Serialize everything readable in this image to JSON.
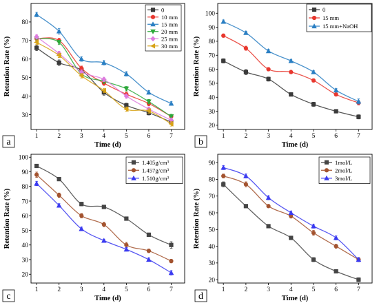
{
  "chart_data": [
    {
      "panel_label": "a",
      "type": "line",
      "xlabel": "Time (d)",
      "ylabel": "Retention Rate (%)",
      "x": [
        1,
        2,
        3,
        4,
        5,
        6,
        7
      ],
      "xticks": [
        1,
        2,
        3,
        4,
        5,
        6,
        7
      ],
      "xlim": [
        0.75,
        7.6
      ],
      "yticks": [
        30,
        40,
        50,
        60,
        70,
        80
      ],
      "ylim": [
        22,
        90
      ],
      "grid": false,
      "legend": "top-right",
      "series": [
        {
          "name": "0",
          "color": "#3a3a3a",
          "marker": "square",
          "values": [
            66,
            58,
            54,
            42,
            35,
            31,
            26
          ],
          "err": [
            1.5,
            1.5,
            1.2,
            1.5,
            1.2,
            1.2,
            1.2
          ]
        },
        {
          "name": "10 mm",
          "color": "#e8372e",
          "marker": "circle",
          "values": [
            71,
            70,
            55,
            47,
            41,
            36,
            29
          ],
          "err": [
            1.2,
            1.2,
            1.2,
            1.2,
            1.2,
            1.2,
            1.2
          ]
        },
        {
          "name": "15 mm",
          "color": "#2a7fc3",
          "marker": "triangle-up",
          "values": [
            84,
            75,
            60,
            58,
            52,
            42,
            36
          ],
          "err": [
            1.2,
            1.5,
            1.2,
            1.2,
            1.2,
            1.0,
            1.0
          ]
        },
        {
          "name": "20 mm",
          "color": "#2da83a",
          "marker": "triangle-down",
          "values": [
            71,
            69,
            52,
            48,
            44,
            37,
            29
          ],
          "err": [
            1.2,
            1.2,
            1.2,
            1.2,
            1.2,
            1.2,
            1.2
          ]
        },
        {
          "name": "25 mm",
          "color": "#dd7bde",
          "marker": "diamond",
          "values": [
            72,
            63,
            53,
            49,
            40,
            33,
            27
          ],
          "err": [
            1.2,
            1.2,
            1.2,
            1.2,
            1.2,
            1.2,
            1.2
          ]
        },
        {
          "name": "30 mm",
          "color": "#d7a216",
          "marker": "triangle-left",
          "values": [
            69,
            62,
            51,
            43,
            33,
            32,
            25
          ],
          "err": [
            1.2,
            1.2,
            1.2,
            1.2,
            1.2,
            1.2,
            1.2
          ]
        }
      ]
    },
    {
      "panel_label": "b",
      "type": "line",
      "xlabel": "Time (d)",
      "ylabel": "Retention Rate (%)",
      "x": [
        1,
        2,
        3,
        4,
        5,
        6,
        7
      ],
      "xticks": [
        1,
        2,
        3,
        4,
        5,
        6,
        7
      ],
      "xlim": [
        0.75,
        7.6
      ],
      "yticks": [
        20,
        30,
        40,
        50,
        60,
        70,
        80,
        90,
        100
      ],
      "ylim": [
        17,
        107
      ],
      "grid": false,
      "legend": "top-right",
      "series": [
        {
          "name": "0",
          "color": "#3a3a3a",
          "marker": "square",
          "values": [
            66,
            58,
            53,
            42,
            35,
            30,
            26
          ],
          "err": [
            1.5,
            1.8,
            1.5,
            1.2,
            1.5,
            1.2,
            1.5
          ]
        },
        {
          "name": "15 mm",
          "color": "#e8372e",
          "marker": "circle",
          "values": [
            84,
            75,
            60,
            58,
            52,
            42,
            36
          ],
          "err": [
            1.2,
            1.5,
            1.2,
            1.2,
            1.2,
            1.2,
            1.5
          ]
        },
        {
          "name": "15 mm+NaOH",
          "color": "#2a7fc3",
          "marker": "triangle-up",
          "values": [
            94,
            86,
            73,
            66,
            58,
            45,
            37
          ],
          "err": [
            1.2,
            1.0,
            1.2,
            1.0,
            1.0,
            1.2,
            1.8
          ]
        }
      ]
    },
    {
      "panel_label": "c",
      "type": "line",
      "xlabel": "Time (d)",
      "ylabel": "Retention Rate (%)",
      "x": [
        1,
        2,
        3,
        4,
        5,
        6,
        7
      ],
      "xticks": [
        1,
        2,
        3,
        4,
        5,
        6,
        7
      ],
      "xlim": [
        0.75,
        7.6
      ],
      "yticks": [
        20,
        30,
        40,
        50,
        60,
        70,
        80,
        90,
        100
      ],
      "ylim": [
        14,
        102
      ],
      "grid": false,
      "legend": "top-right",
      "series": [
        {
          "name": "1.405g/cm³",
          "color": "#454545",
          "marker": "square",
          "values": [
            94,
            85,
            68,
            66,
            58,
            47,
            40
          ],
          "err": [
            1.2,
            1.0,
            1.2,
            1.0,
            1.2,
            1.2,
            2.2
          ]
        },
        {
          "name": "1.457g/cm³",
          "color": "#a3532f",
          "marker": "circle",
          "values": [
            88,
            74,
            60,
            54,
            40,
            36,
            29
          ],
          "err": [
            1.8,
            1.5,
            1.5,
            1.5,
            1.8,
            1.2,
            1.2
          ]
        },
        {
          "name": "1.510g/cm³",
          "color": "#3a3af0",
          "marker": "triangle-up",
          "values": [
            82,
            67,
            51,
            43,
            37,
            30,
            21
          ],
          "err": [
            1.5,
            1.2,
            1.2,
            1.0,
            1.2,
            1.2,
            1.5
          ]
        }
      ]
    },
    {
      "panel_label": "d",
      "type": "line",
      "xlabel": "Time (d)",
      "ylabel": "Retention Rate (%)",
      "x": [
        1,
        2,
        3,
        4,
        5,
        6,
        7
      ],
      "xticks": [
        1,
        2,
        3,
        4,
        5,
        6,
        7
      ],
      "xlim": [
        0.75,
        7.6
      ],
      "yticks": [
        20,
        30,
        40,
        50,
        60,
        70,
        80,
        90
      ],
      "ylim": [
        18,
        95
      ],
      "grid": false,
      "legend": "top-right",
      "series": [
        {
          "name": "1mol/L",
          "color": "#454545",
          "marker": "square",
          "values": [
            77,
            64,
            52,
            45,
            32,
            25,
            20
          ],
          "err": [
            1.5,
            1.0,
            1.0,
            1.0,
            1.2,
            1.0,
            1.2
          ]
        },
        {
          "name": "2mol/L",
          "color": "#a3532f",
          "marker": "circle",
          "values": [
            82,
            77,
            64,
            58,
            48,
            40,
            32
          ],
          "err": [
            1.2,
            1.5,
            1.0,
            1.2,
            1.5,
            1.2,
            1.2
          ]
        },
        {
          "name": "3mol/L",
          "color": "#3a3af0",
          "marker": "triangle-up",
          "values": [
            87,
            82,
            69,
            60,
            52,
            45,
            32
          ],
          "err": [
            1.2,
            1.2,
            1.2,
            1.0,
            1.2,
            1.2,
            1.2
          ]
        }
      ]
    }
  ]
}
